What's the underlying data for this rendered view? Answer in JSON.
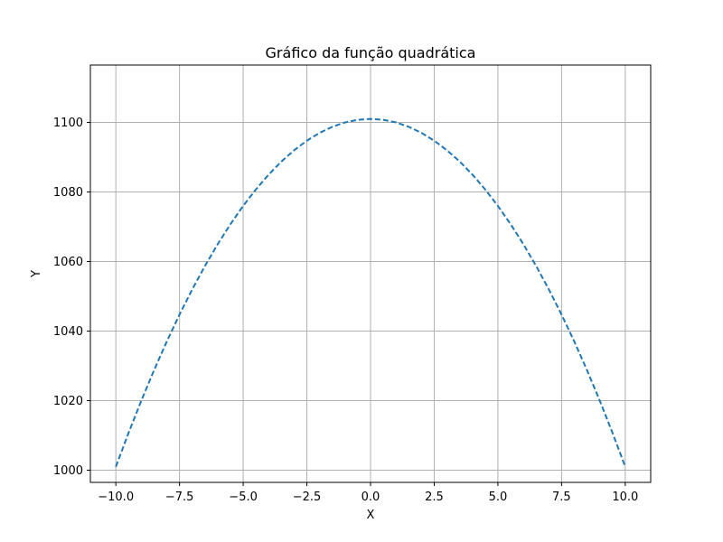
{
  "chart_data": {
    "type": "line",
    "title": "Gráfico da função quadrática",
    "xlabel": "X",
    "ylabel": "Y",
    "xlim": [
      -11.0,
      11.0
    ],
    "ylim": [
      996.5,
      1116.5
    ],
    "grid": true,
    "line_style": "dashed",
    "x_ticks": [
      -10.0,
      -7.5,
      -5.0,
      -2.5,
      0.0,
      2.5,
      5.0,
      7.5,
      10.0
    ],
    "x_tick_labels": [
      "−10.0",
      "−7.5",
      "−5.0",
      "−2.5",
      "0.0",
      "2.5",
      "5.0",
      "7.5",
      "10.0"
    ],
    "y_ticks": [
      1000,
      1020,
      1040,
      1060,
      1080,
      1100
    ],
    "y_tick_labels": [
      "1000",
      "1020",
      "1040",
      "1060",
      "1080",
      "1100"
    ],
    "series": [
      {
        "color": "#1f77b4",
        "x": [
          -10.0,
          -9.5,
          -9.0,
          -8.5,
          -8.0,
          -7.5,
          -7.0,
          -6.5,
          -6.0,
          -5.5,
          -5.0,
          -4.5,
          -4.0,
          -3.5,
          -3.0,
          -2.5,
          -2.0,
          -1.5,
          -1.0,
          -0.5,
          0.0,
          0.5,
          1.0,
          1.5,
          2.0,
          2.5,
          3.0,
          3.5,
          4.0,
          4.5,
          5.0,
          5.5,
          6.0,
          6.5,
          7.0,
          7.5,
          8.0,
          8.5,
          9.0,
          9.5,
          10.0
        ],
        "y": [
          1001.0,
          1010.75,
          1020.0,
          1028.75,
          1037.0,
          1044.75,
          1052.0,
          1058.75,
          1065.0,
          1070.75,
          1076.0,
          1080.75,
          1085.0,
          1088.75,
          1092.0,
          1094.75,
          1097.0,
          1098.75,
          1100.0,
          1100.75,
          1101.0,
          1100.75,
          1100.0,
          1098.75,
          1097.0,
          1094.75,
          1092.0,
          1088.75,
          1085.0,
          1080.75,
          1076.0,
          1070.75,
          1065.0,
          1058.75,
          1052.0,
          1044.75,
          1037.0,
          1028.75,
          1020.0,
          1010.75,
          1001.0
        ]
      }
    ]
  }
}
